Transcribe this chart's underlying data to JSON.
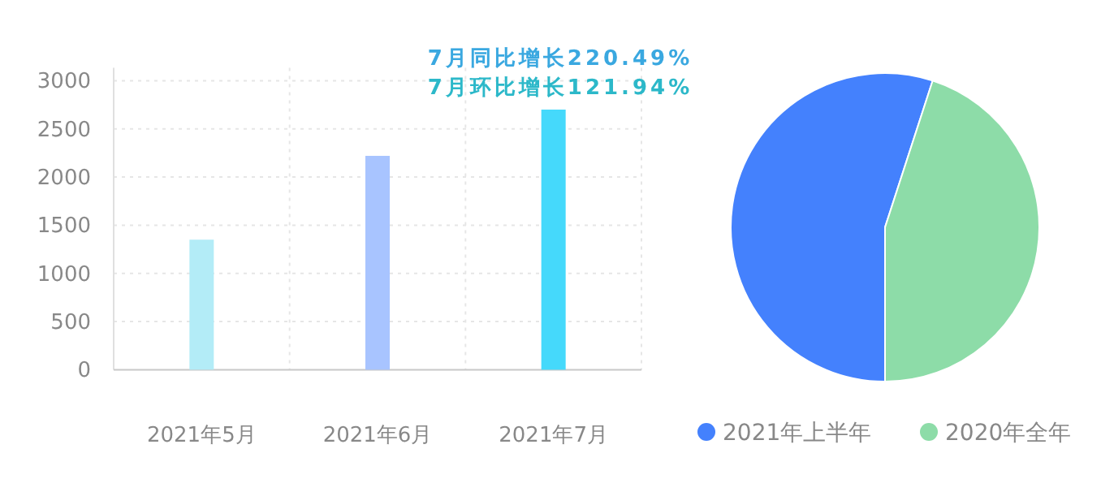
{
  "chart_data": [
    {
      "type": "bar",
      "categories": [
        "2021年5月",
        "2021年6月",
        "2021年7月"
      ],
      "values": [
        1350,
        2220,
        2700
      ],
      "colors": [
        "#b3ecf7",
        "#a8c4ff",
        "#45d9fb"
      ],
      "ylim": [
        0,
        3000
      ],
      "yticks": [
        0,
        500,
        1000,
        1500,
        2000,
        2500,
        3000
      ],
      "grid": true,
      "annotations": [
        "7月同比增长220.49%",
        "7月环比增长121.94%"
      ]
    },
    {
      "type": "pie",
      "categories": [
        "2021年上半年",
        "2020年全年"
      ],
      "values": [
        55,
        45
      ],
      "colors": [
        "#4481fd",
        "#8ddca8"
      ],
      "legend": "bottom"
    }
  ]
}
